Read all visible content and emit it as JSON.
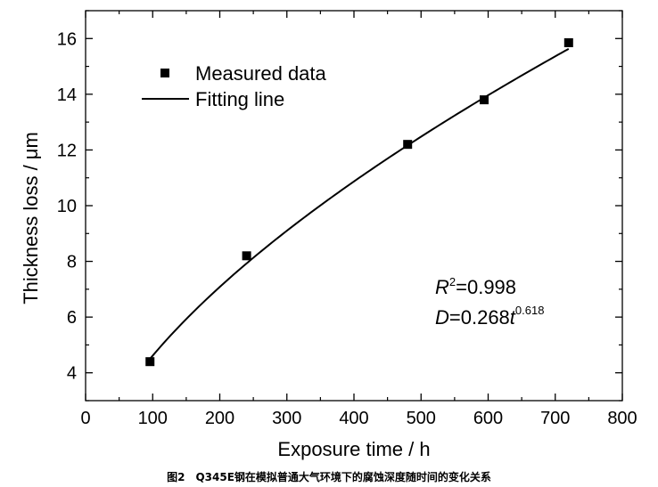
{
  "chart_data": {
    "type": "scatter",
    "title": "",
    "xlabel": "Exposure time / h",
    "ylabel": "Thickness loss / μm",
    "xlim": [
      0,
      800
    ],
    "ylim": [
      3,
      17
    ],
    "xticks": [
      0,
      100,
      200,
      300,
      400,
      500,
      600,
      700,
      800
    ],
    "yticks": [
      4,
      6,
      8,
      10,
      12,
      14,
      16
    ],
    "grid": false,
    "legend_position": "top-left",
    "series": [
      {
        "name": "Measured data",
        "kind": "scatter",
        "marker": "square",
        "x": [
          96,
          240,
          480,
          594,
          720
        ],
        "y": [
          4.4,
          8.2,
          12.2,
          13.8,
          15.85
        ]
      },
      {
        "name": "Fitting line",
        "kind": "line",
        "model": {
          "coefficient": 0.268,
          "exponent": 0.618
        },
        "x_range": [
          96,
          720
        ]
      }
    ],
    "annotations": {
      "r2_symbol": "R",
      "r2_sup": "2",
      "r2_value": "=0.998",
      "eq_lhs": "D",
      "eq_mid": "=0.268",
      "eq_var": "t",
      "eq_sup": "0.618"
    }
  },
  "caption": "图2　Q345E钢在模拟普通大气环境下的腐蚀深度随时间的变化关系"
}
